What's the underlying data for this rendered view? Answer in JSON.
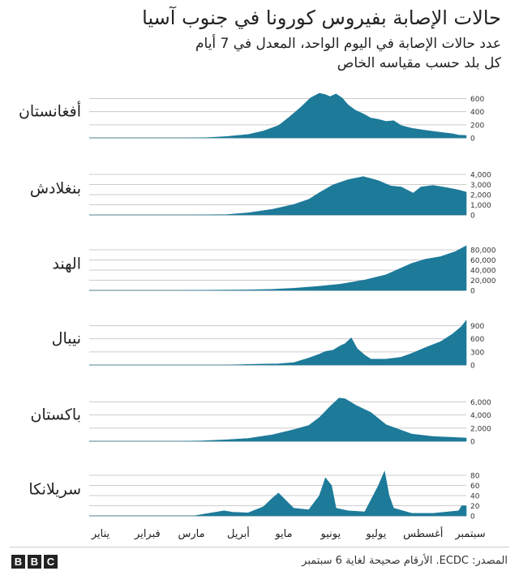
{
  "header": {
    "title": "حالات الإصابة بفيروس كورونا في جنوب آسيا",
    "subtitle_line1": "عدد حالات الإصابة في اليوم الواحد، المعدل في 7 أيام",
    "subtitle_line2": "كل بلد حسب مقياسه الخاص"
  },
  "footer": {
    "source": "المصدر: ECDC. الأرقام صحيحة لغاية 6 سبتمبر",
    "logo_letters": [
      "B",
      "B",
      "C"
    ]
  },
  "colors": {
    "area": "#1d7a99",
    "grid": "#cccccc",
    "text": "#222222"
  },
  "chart_data": {
    "type": "area",
    "x_categories": [
      "يناير",
      "فبراير",
      "مارس",
      "أبريل",
      "مايو",
      "يونيو",
      "يوليو",
      "أغسطس",
      "سبتمبر"
    ],
    "x_range": [
      "2020-01-01",
      "2020-09-06"
    ],
    "grid": true,
    "panels": [
      {
        "label": "أفغانستان",
        "yticks": [
          "0",
          "200",
          "400",
          "600"
        ],
        "ylim": [
          0,
          650
        ],
        "points": [
          [
            "2020-01-01",
            0
          ],
          [
            "2020-03-01",
            0
          ],
          [
            "2020-03-20",
            5
          ],
          [
            "2020-04-01",
            20
          ],
          [
            "2020-04-15",
            50
          ],
          [
            "2020-04-25",
            100
          ],
          [
            "2020-05-05",
            180
          ],
          [
            "2020-05-12",
            300
          ],
          [
            "2020-05-20",
            450
          ],
          [
            "2020-05-26",
            580
          ],
          [
            "2020-06-01",
            650
          ],
          [
            "2020-06-05",
            630
          ],
          [
            "2020-06-08",
            600
          ],
          [
            "2020-06-12",
            640
          ],
          [
            "2020-06-16",
            580
          ],
          [
            "2020-06-20",
            480
          ],
          [
            "2020-06-25",
            400
          ],
          [
            "2020-06-30",
            350
          ],
          [
            "2020-07-05",
            290
          ],
          [
            "2020-07-10",
            270
          ],
          [
            "2020-07-15",
            240
          ],
          [
            "2020-07-20",
            250
          ],
          [
            "2020-07-25",
            180
          ],
          [
            "2020-08-01",
            140
          ],
          [
            "2020-08-10",
            110
          ],
          [
            "2020-08-20",
            80
          ],
          [
            "2020-08-28",
            60
          ],
          [
            "2020-09-01",
            40
          ],
          [
            "2020-09-06",
            35
          ]
        ]
      },
      {
        "label": "بنغلادش",
        "yticks": [
          "0",
          "1,000",
          "2,000",
          "3,000",
          "4,000"
        ],
        "ylim": [
          0,
          4300
        ],
        "points": [
          [
            "2020-01-01",
            0
          ],
          [
            "2020-03-10",
            0
          ],
          [
            "2020-04-01",
            30
          ],
          [
            "2020-04-15",
            200
          ],
          [
            "2020-05-01",
            550
          ],
          [
            "2020-05-15",
            1000
          ],
          [
            "2020-05-25",
            1500
          ],
          [
            "2020-06-01",
            2150
          ],
          [
            "2020-06-10",
            2900
          ],
          [
            "2020-06-20",
            3400
          ],
          [
            "2020-06-30",
            3700
          ],
          [
            "2020-07-05",
            3500
          ],
          [
            "2020-07-10",
            3300
          ],
          [
            "2020-07-18",
            2800
          ],
          [
            "2020-07-25",
            2700
          ],
          [
            "2020-08-02",
            2100
          ],
          [
            "2020-08-07",
            2700
          ],
          [
            "2020-08-15",
            2850
          ],
          [
            "2020-08-25",
            2600
          ],
          [
            "2020-09-01",
            2400
          ],
          [
            "2020-09-06",
            2200
          ]
        ]
      },
      {
        "label": "الهند",
        "yticks": [
          "0",
          "20,000",
          "40,000",
          "60,000",
          "80,000"
        ],
        "ylim": [
          0,
          86000
        ],
        "points": [
          [
            "2020-01-01",
            0
          ],
          [
            "2020-03-01",
            0
          ],
          [
            "2020-04-01",
            600
          ],
          [
            "2020-04-15",
            1000
          ],
          [
            "2020-05-01",
            2000
          ],
          [
            "2020-05-15",
            4000
          ],
          [
            "2020-06-01",
            8000
          ],
          [
            "2020-06-15",
            12000
          ],
          [
            "2020-07-01",
            20000
          ],
          [
            "2020-07-15",
            30000
          ],
          [
            "2020-08-01",
            52000
          ],
          [
            "2020-08-10",
            60000
          ],
          [
            "2020-08-20",
            65000
          ],
          [
            "2020-08-30",
            75000
          ],
          [
            "2020-09-06",
            86000
          ]
        ]
      },
      {
        "label": "نيبال",
        "yticks": [
          "0",
          "300",
          "600",
          "900"
        ],
        "ylim": [
          0,
          1150
        ],
        "points": [
          [
            "2020-01-01",
            0
          ],
          [
            "2020-04-01",
            0
          ],
          [
            "2020-04-20",
            20
          ],
          [
            "2020-05-05",
            30
          ],
          [
            "2020-05-15",
            60
          ],
          [
            "2020-05-25",
            180
          ],
          [
            "2020-06-01",
            280
          ],
          [
            "2020-06-05",
            350
          ],
          [
            "2020-06-10",
            380
          ],
          [
            "2020-06-15",
            500
          ],
          [
            "2020-06-18",
            550
          ],
          [
            "2020-06-22",
            700
          ],
          [
            "2020-06-26",
            420
          ],
          [
            "2020-07-01",
            250
          ],
          [
            "2020-07-05",
            150
          ],
          [
            "2020-07-15",
            150
          ],
          [
            "2020-07-25",
            200
          ],
          [
            "2020-08-01",
            300
          ],
          [
            "2020-08-10",
            450
          ],
          [
            "2020-08-20",
            600
          ],
          [
            "2020-08-28",
            800
          ],
          [
            "2020-09-03",
            1000
          ],
          [
            "2020-09-06",
            1150
          ]
        ]
      },
      {
        "label": "باكستان",
        "yticks": [
          "0",
          "2,000",
          "4,000",
          "6,000"
        ],
        "ylim": [
          0,
          6200
        ],
        "points": [
          [
            "2020-01-01",
            0
          ],
          [
            "2020-03-01",
            0
          ],
          [
            "2020-03-15",
            50
          ],
          [
            "2020-04-01",
            200
          ],
          [
            "2020-04-15",
            400
          ],
          [
            "2020-05-01",
            900
          ],
          [
            "2020-05-15",
            1600
          ],
          [
            "2020-05-25",
            2200
          ],
          [
            "2020-06-01",
            3300
          ],
          [
            "2020-06-08",
            4800
          ],
          [
            "2020-06-14",
            6000
          ],
          [
            "2020-06-18",
            5900
          ],
          [
            "2020-06-25",
            5000
          ],
          [
            "2020-07-05",
            4000
          ],
          [
            "2020-07-15",
            2300
          ],
          [
            "2020-08-01",
            1000
          ],
          [
            "2020-08-15",
            650
          ],
          [
            "2020-09-01",
            500
          ],
          [
            "2020-09-06",
            450
          ]
        ]
      },
      {
        "label": "سريلانكا",
        "yticks": [
          "0",
          "20",
          "40",
          "60",
          "80"
        ],
        "ylim": [
          0,
          88
        ],
        "points": [
          [
            "2020-01-01",
            0
          ],
          [
            "2020-03-10",
            0
          ],
          [
            "2020-03-20",
            5
          ],
          [
            "2020-03-30",
            10
          ],
          [
            "2020-04-05",
            7
          ],
          [
            "2020-04-15",
            6
          ],
          [
            "2020-04-20",
            12
          ],
          [
            "2020-04-25",
            18
          ],
          [
            "2020-05-01",
            35
          ],
          [
            "2020-05-05",
            45
          ],
          [
            "2020-05-10",
            30
          ],
          [
            "2020-05-15",
            15
          ],
          [
            "2020-05-25",
            12
          ],
          [
            "2020-06-01",
            40
          ],
          [
            "2020-06-05",
            75
          ],
          [
            "2020-06-09",
            60
          ],
          [
            "2020-06-12",
            15
          ],
          [
            "2020-06-20",
            10
          ],
          [
            "2020-07-01",
            8
          ],
          [
            "2020-07-10",
            60
          ],
          [
            "2020-07-14",
            88
          ],
          [
            "2020-07-17",
            40
          ],
          [
            "2020-07-20",
            15
          ],
          [
            "2020-08-01",
            5
          ],
          [
            "2020-08-15",
            5
          ],
          [
            "2020-09-01",
            10
          ],
          [
            "2020-09-03",
            20
          ],
          [
            "2020-09-06",
            20
          ]
        ]
      }
    ]
  }
}
